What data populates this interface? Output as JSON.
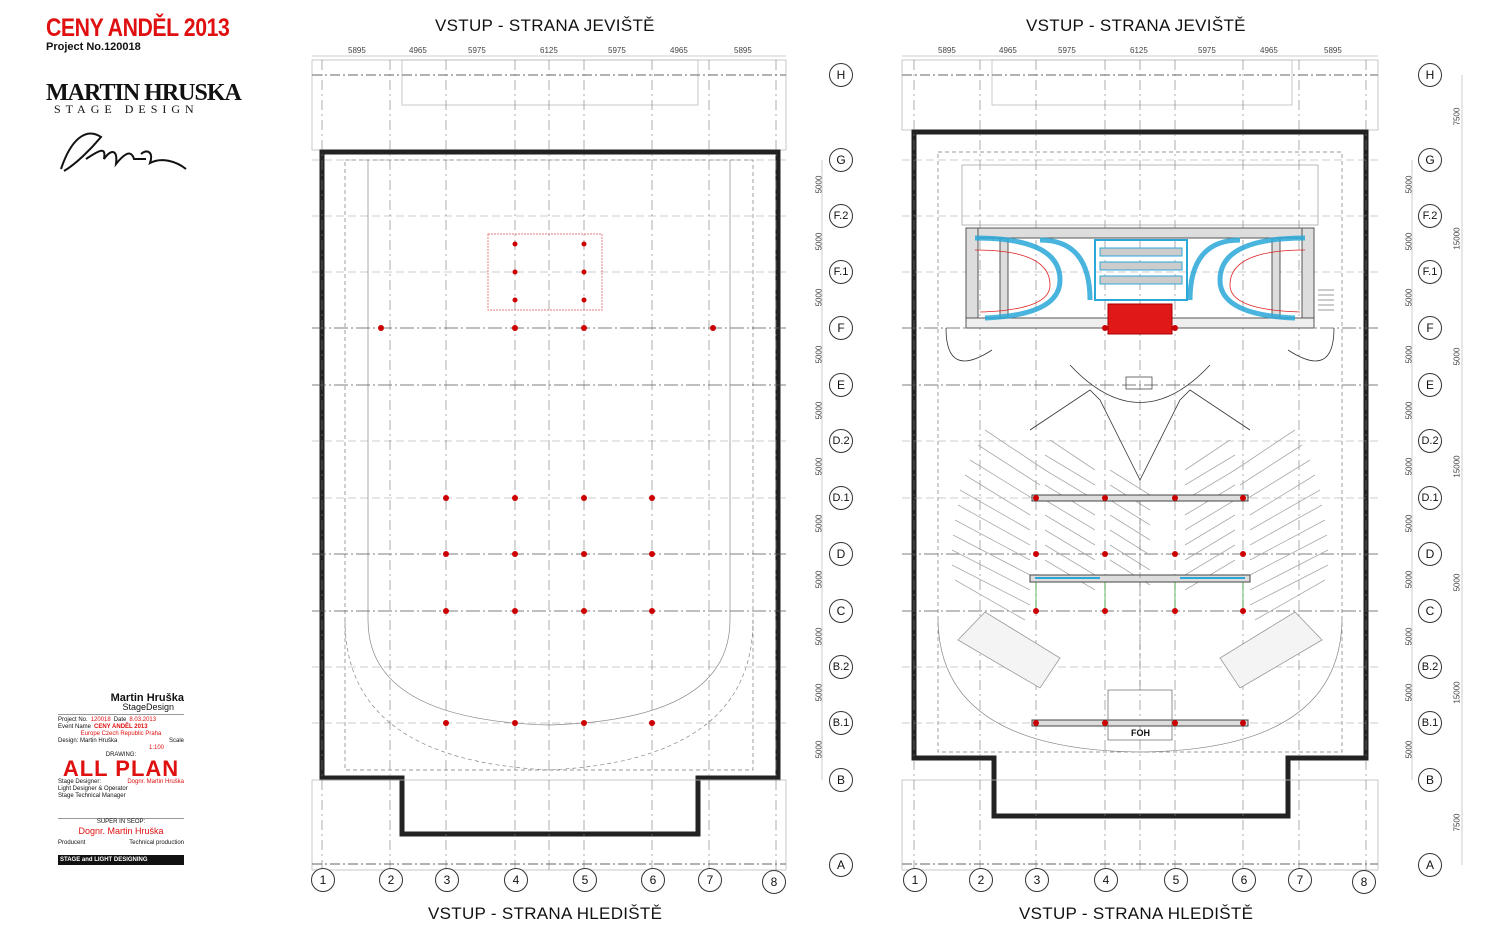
{
  "header": {
    "title": "CENY ANDĚL 2013",
    "project": "Project No.120018"
  },
  "brand": {
    "name": "MARTIN HRUSKA",
    "subtitle": "STAGE DESIGN",
    "signature": "Martin Hruška"
  },
  "plans": [
    {
      "top_label": "VSTUP - STRANA JEVIŠTĚ",
      "bottom_label": "VSTUP - STRANA HLEDIŠTĚ"
    },
    {
      "top_label": "VSTUP - STRANA JEVIŠTĚ",
      "bottom_label": "VSTUP - STRANA HLEDIŠTĚ",
      "foh_label": "FOH"
    }
  ],
  "top_dimensions": [
    "5895",
    "4965",
    "5975",
    "6125",
    "5975",
    "4965",
    "5895"
  ],
  "column_axes": [
    "1",
    "2",
    "3",
    "4",
    "5",
    "6",
    "7",
    "8"
  ],
  "row_axes": [
    "H",
    "G",
    "F.2",
    "F.1",
    "F",
    "E",
    "D.2",
    "D.1",
    "D",
    "C",
    "B.2",
    "B.1",
    "B",
    "A"
  ],
  "side_dimensions_left": [
    "5000",
    "5000",
    "5000",
    "5000",
    "5000",
    "5000",
    "5000",
    "5000",
    "5000",
    "5000",
    "5000"
  ],
  "side_dimensions_right": [
    "7500",
    "15000",
    "5000",
    "15000",
    "5000",
    "15000",
    "7500"
  ],
  "title_block": {
    "brand": "Martin Hruška",
    "brand_sub": "StageDesign",
    "project_no_label": "Project No.",
    "project_no": "120018",
    "date_label": "Date",
    "date": "8.03.2013",
    "event_label": "Event Name",
    "event": "CENY ANDĚL 2013",
    "location": "Europe Czech Republic Praha",
    "design_label": "Design: Martin Hruška",
    "scale_label": "Scale",
    "scale": "1:100",
    "drawing_label": "DRAWING:",
    "drawing": "ALL PLAN",
    "stage_designer_label": "Stage Designer:",
    "stage_designer": "Dognr. Martin Hruška",
    "light_label": "Light Designer & Operator",
    "technical_label": "Stage Technical Manager",
    "approved_label": "SUPER IN SEOP:",
    "approved": "Dognr. Martin Hruška",
    "producer_label": "Producent",
    "production_label": "Technical production",
    "footer": "STAGE and LIGHT DESIGNING"
  },
  "colors": {
    "accent_red": "#e01010",
    "wall": "#222222",
    "truss_blue": "#2aa8d8",
    "riser_red": "#e01818",
    "grid": "#888888"
  }
}
